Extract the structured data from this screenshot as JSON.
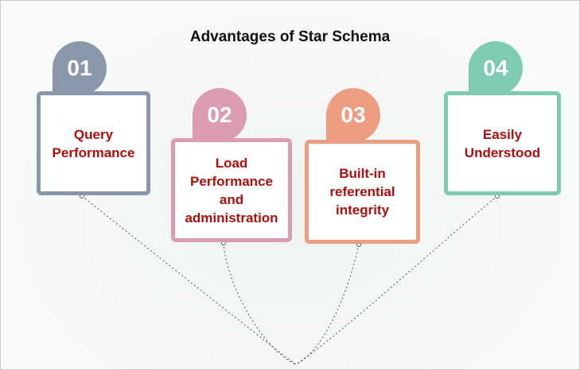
{
  "title": "Advantages of Star Schema",
  "items": [
    {
      "number": "01",
      "label": "Query Performance",
      "color": "#8a96aa"
    },
    {
      "number": "02",
      "label": "Load Performance and administration",
      "color": "#dc9caf"
    },
    {
      "number": "03",
      "label": "Built-in referential integrity",
      "color": "#ee9e80"
    },
    {
      "number": "04",
      "label": "Easily Understood",
      "color": "#7ecbb3"
    }
  ]
}
